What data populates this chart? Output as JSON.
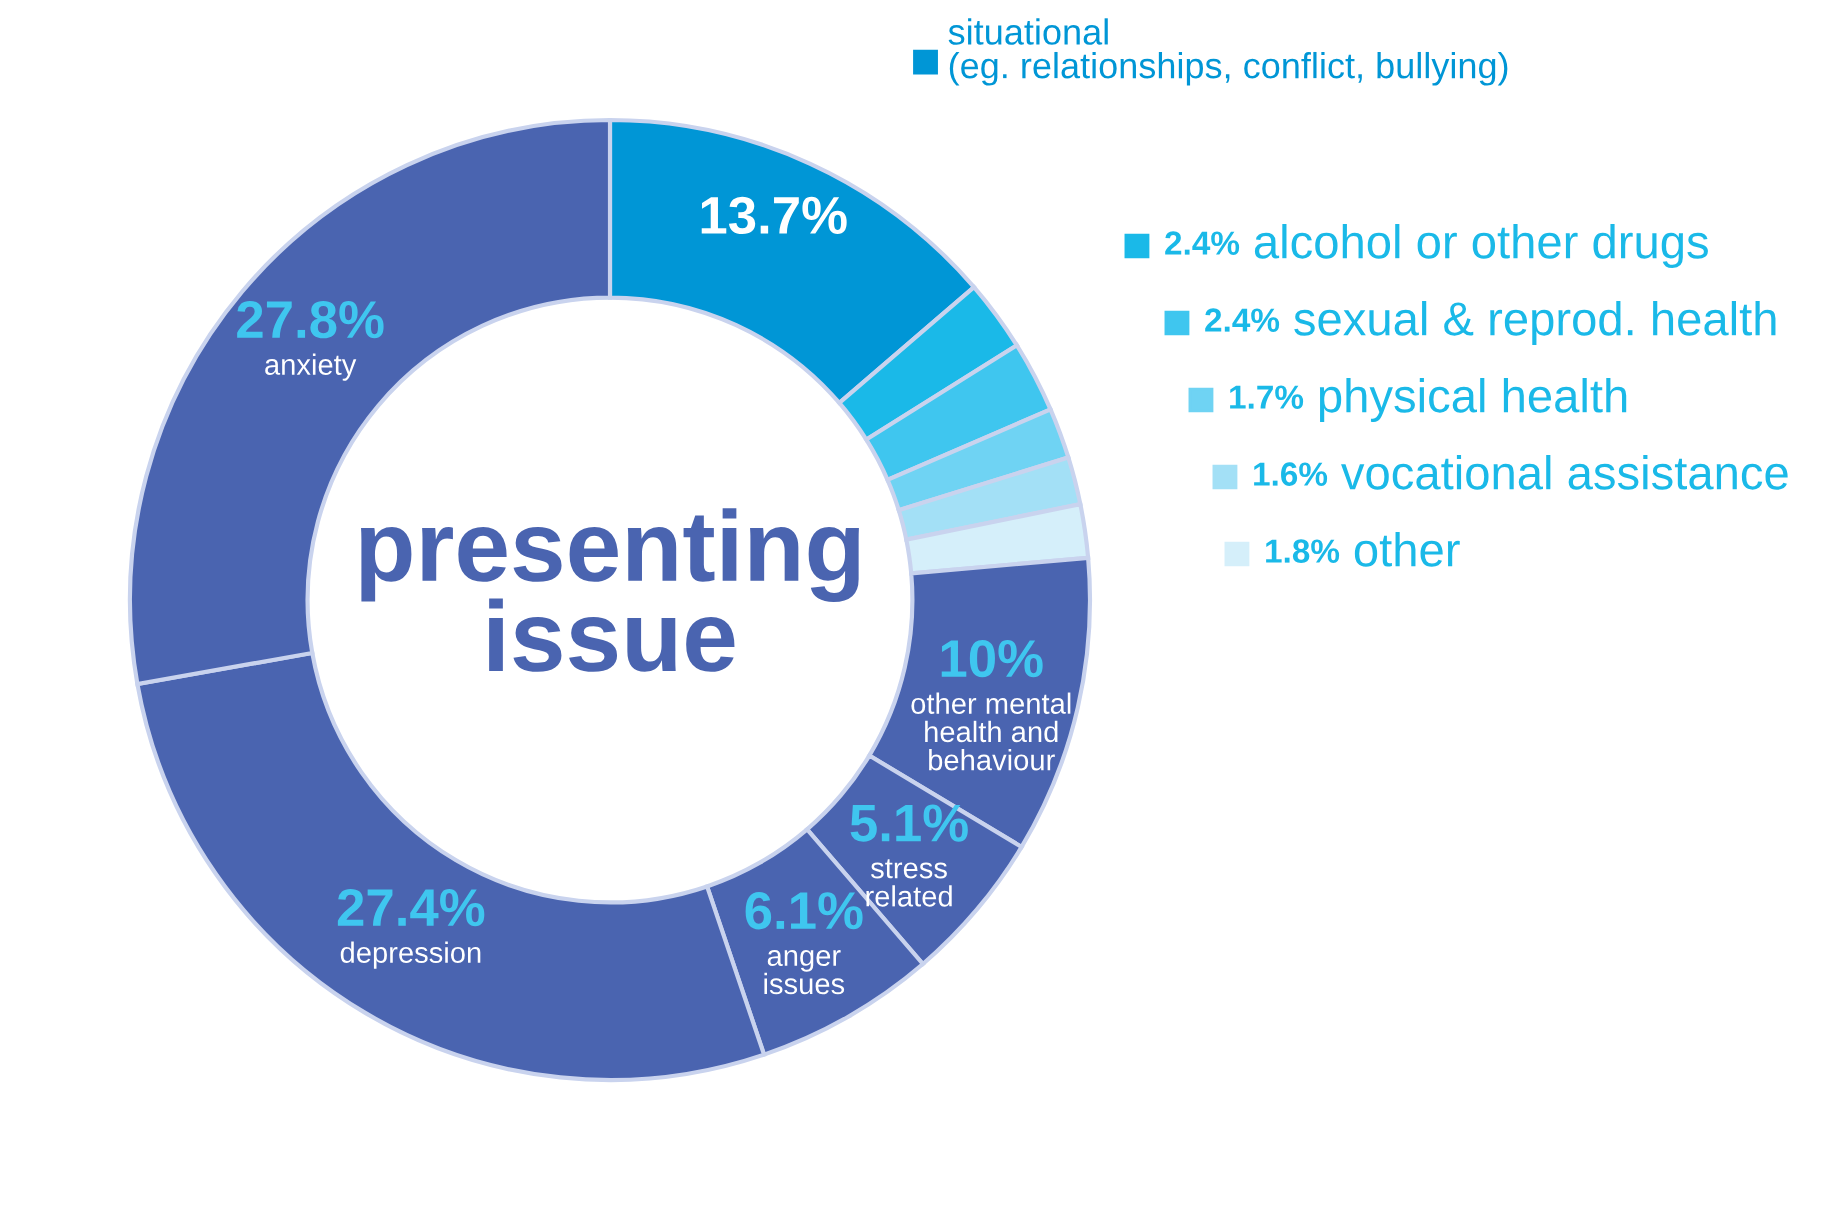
{
  "chart_data": {
    "type": "donut",
    "title": "presenting issue",
    "categories": [
      "situational\n(eg. relationships, conflict, bullying)",
      "alcohol or other drugs",
      "sexual & reprod. health",
      "physical health",
      "vocational assistance",
      "other",
      "other mental\nhealth and\nbehaviour",
      "stress\nrelated",
      "anger\nissues",
      "depression",
      "anxiety"
    ],
    "values": [
      13.7,
      2.4,
      2.4,
      1.7,
      1.6,
      1.8,
      10,
      5.1,
      6.1,
      27.4,
      27.8
    ],
    "value_labels": [
      "13.7%",
      "2.4%",
      "2.4%",
      "1.7%",
      "1.6%",
      "1.8%",
      "10%",
      "5.1%",
      "6.1%",
      "27.4%",
      "27.8%"
    ],
    "colors": [
      "#0096d6",
      "#1ab9e8",
      "#3fc6ef",
      "#6fd3f3",
      "#a3e0f6",
      "#d5effa",
      "#4a64b0",
      "#4a64b0",
      "#4a64b0",
      "#4a64b0",
      "#4a64b0"
    ],
    "legend": "right"
  }
}
